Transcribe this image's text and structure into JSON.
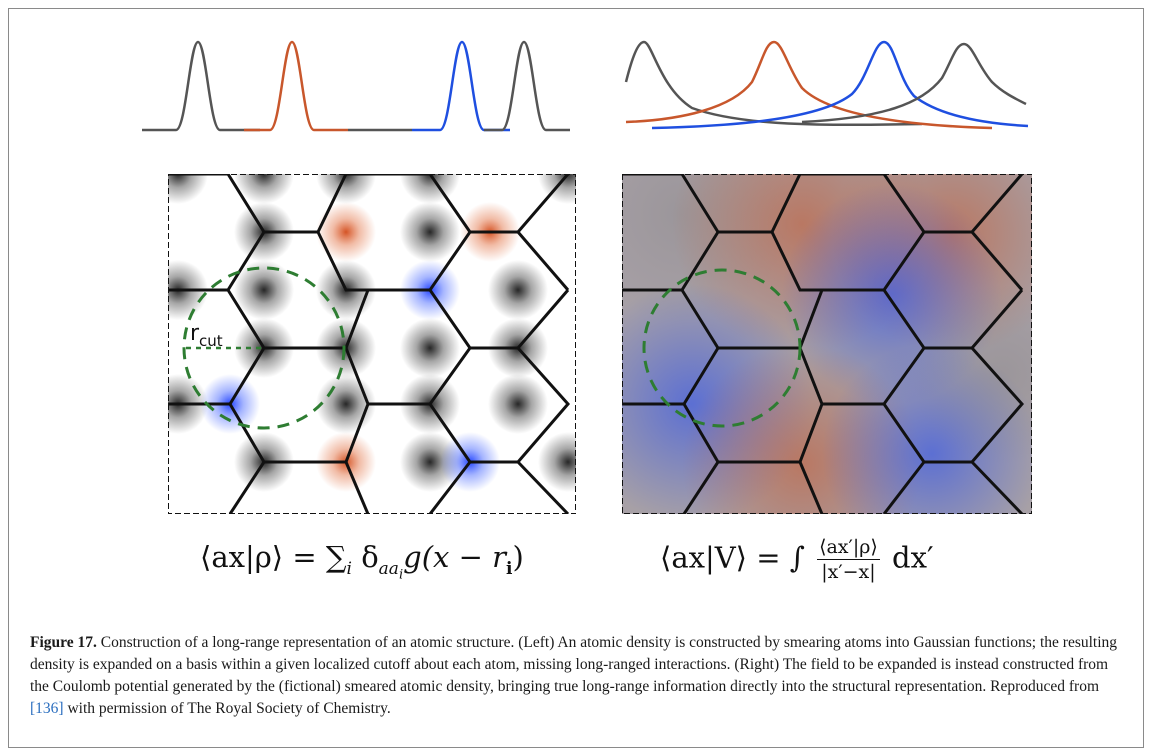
{
  "figure": {
    "left_equation": {
      "lhs": "⟨ax|ρ⟩",
      "rhs_prefix": "= ∑",
      "rhs_sub": "i",
      "rhs_body": "δ",
      "rhs_body_sub": "aa",
      "rhs_body_sub2": "i",
      "rhs_rest": "g(x − r",
      "rhs_rest_sub": "i",
      "rhs_close": ")"
    },
    "right_equation": {
      "lhs": "⟨ax|V⟩ = ∫",
      "frac_num": "⟨ax′|ρ⟩",
      "frac_den": "|x′−x|",
      "tail": "dx′"
    },
    "rcut_label": "r",
    "rcut_sub": "cut",
    "colors": {
      "gray": "#555555",
      "red": "#c8572c",
      "blue": "#1f4fe0",
      "circle": "#2e7d32"
    }
  },
  "caption": {
    "label": "Figure 17.",
    "text1": "Construction of a long-range representation of an atomic structure. (Left) An atomic density is constructed by smearing atoms into Gaussian functions; the resulting density is expanded on a basis within a given localized cutoff about each atom, missing long-ranged interactions. (Right) The field to be expanded is instead constructed from the Coulomb potential generated by the (fictional) smeared atomic density, bringing true long-range information directly into the structural representation. Reproduced from ",
    "ref": "[136]",
    "text2": " with permission of The Royal Society of Chemistry."
  }
}
